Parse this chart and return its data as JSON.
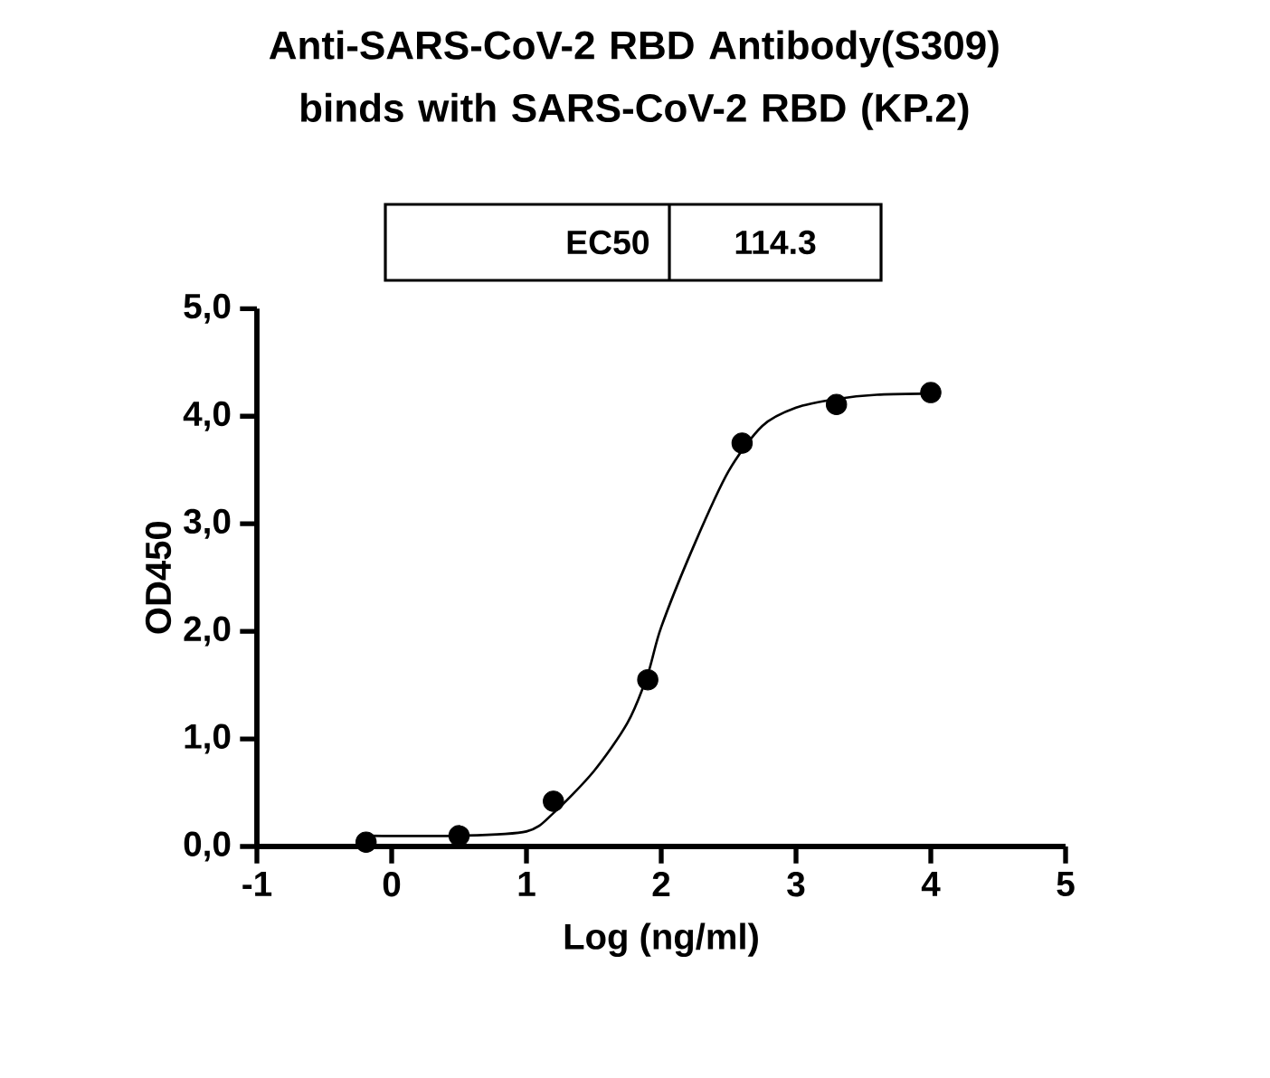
{
  "chart_data": {
    "type": "scatter",
    "title": "Anti-SARS-CoV-2 RBD Antibody(S309) binds with SARS-CoV-2 RBD (KP.2)",
    "xlabel": "Log (ng/ml)",
    "ylabel": "OD450",
    "annotations": [
      "EC50",
      "114.3"
    ],
    "series": [
      {
        "color": "#000000",
        "marker": "circle",
        "x": [
          -0.19,
          0.5,
          1.2,
          1.9,
          2.6,
          3.3,
          4.0
        ],
        "values": [
          0.04,
          0.1,
          0.42,
          1.55,
          3.75,
          4.11,
          4.22
        ]
      },
      {
        "type": "line",
        "color": "#000000",
        "marker": "none",
        "x": [
          -0.19,
          0.5,
          1.0,
          1.2,
          1.5,
          1.75,
          1.9,
          2.0,
          2.25,
          2.5,
          2.75,
          3.0,
          3.3,
          3.6,
          4.0
        ],
        "values": [
          0.1,
          0.1,
          0.14,
          0.31,
          0.7,
          1.15,
          1.6,
          2.04,
          2.82,
          3.49,
          3.91,
          4.08,
          4.16,
          4.2,
          4.21
        ]
      }
    ],
    "xlim": [
      -1,
      5
    ],
    "ylim": [
      0,
      5
    ],
    "xticks": [
      -1,
      0,
      1,
      2,
      3,
      4,
      5
    ],
    "yticks": [
      {
        "value": 0,
        "label": "0,0"
      },
      {
        "value": 1,
        "label": "1,0"
      },
      {
        "value": 2,
        "label": "2,0"
      },
      {
        "value": 3,
        "label": "3,0"
      },
      {
        "value": 4,
        "label": "4,0"
      },
      {
        "value": 5,
        "label": "5,0"
      }
    ],
    "line_style": "solid"
  }
}
